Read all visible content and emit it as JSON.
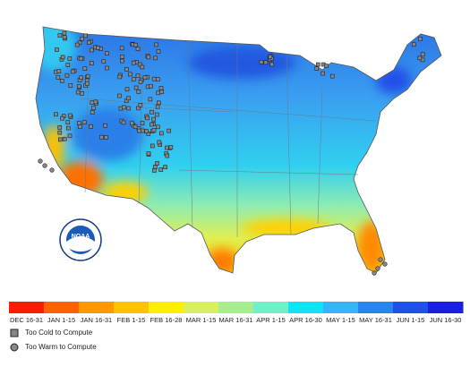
{
  "logo": "NOAA",
  "legend": {
    "bins": [
      {
        "label": "DEC 16-31",
        "color": "#ff1a00"
      },
      {
        "label": "JAN 1-15",
        "color": "#ff6200"
      },
      {
        "label": "JAN 16-31",
        "color": "#ff9800"
      },
      {
        "label": "FEB 1-15",
        "color": "#ffc400"
      },
      {
        "label": "FEB 16-28",
        "color": "#fff000"
      },
      {
        "label": "MAR 1-15",
        "color": "#d8f060"
      },
      {
        "label": "MAR 16-31",
        "color": "#a6ec90"
      },
      {
        "label": "APR 1-15",
        "color": "#6ef0c8"
      },
      {
        "label": "APR 16-30",
        "color": "#10e4f4"
      },
      {
        "label": "MAY 1-15",
        "color": "#38b4f8"
      },
      {
        "label": "MAY 16-31",
        "color": "#2a84f0"
      },
      {
        "label": "JUN 1-15",
        "color": "#2050e8"
      },
      {
        "label": "JUN 16-30",
        "color": "#1a20e0"
      }
    ],
    "markers": [
      {
        "label": "Too Cold to Compute"
      },
      {
        "label": "Too Warm to Compute"
      }
    ]
  }
}
